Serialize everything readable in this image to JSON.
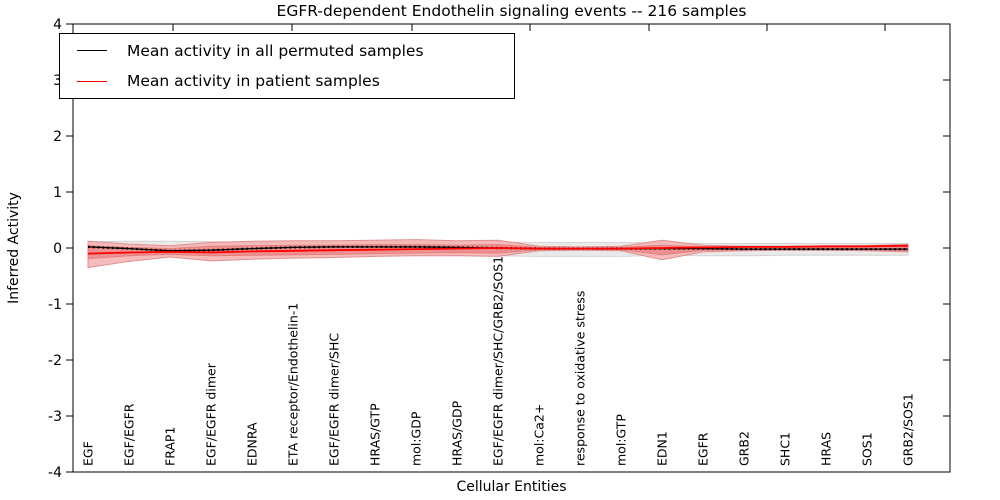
{
  "chart_data": {
    "type": "line",
    "title": "EGFR-dependent Endothelin signaling events -- 216 samples",
    "xlabel": "Cellular Entities",
    "ylabel": "Inferred Activity",
    "ylim": [
      -4,
      4
    ],
    "yticks": [
      4,
      3,
      2,
      1,
      0,
      -1,
      -2,
      -3,
      -4
    ],
    "grid": false,
    "legend_position": "upper-left",
    "categories": [
      "EGF",
      "EGF/EGFR",
      "FRAP1",
      "EGF/EGFR dimer",
      "EDNRA",
      "ETA receptor/Endothelin-1",
      "EGF/EGFR dimer/SHC",
      "HRAS/GTP",
      "mol:GDP",
      "HRAS/GDP",
      "EGF/EGFR dimer/SHC/GRB2/SOS1",
      "mol:Ca2+",
      "response to oxidative stress",
      "mol:GTP",
      "EDN1",
      "EGFR",
      "GRB2",
      "SHC1",
      "HRAS",
      "SOS1",
      "GRB2/SOS1"
    ],
    "series": [
      {
        "name": "Mean activity in all permuted samples",
        "color": "#000000",
        "style": "solid-with-dotted-overlay",
        "values": [
          0.02,
          -0.01,
          -0.05,
          -0.04,
          -0.01,
          0.01,
          0.02,
          0.02,
          0.02,
          0.01,
          0.0,
          -0.01,
          -0.01,
          -0.01,
          -0.01,
          -0.01,
          -0.02,
          -0.02,
          -0.02,
          -0.02,
          -0.02
        ]
      },
      {
        "name": "Mean activity in patient samples",
        "color": "#ff0000",
        "style": "solid",
        "values": [
          -0.1,
          -0.08,
          -0.07,
          -0.08,
          -0.06,
          -0.05,
          -0.04,
          -0.03,
          -0.02,
          -0.01,
          0.0,
          -0.01,
          -0.01,
          -0.01,
          0.0,
          0.01,
          0.02,
          0.02,
          0.03,
          0.03,
          0.04
        ]
      }
    ],
    "bands": [
      {
        "name": "permuted-samples-std-band",
        "fill": "#e8e8e8",
        "edge": "#d4d4d4",
        "upper": [
          0.11,
          0.12,
          0.12,
          0.11,
          0.1,
          0.1,
          0.1,
          0.1,
          0.1,
          0.1,
          0.1,
          0.1,
          0.1,
          0.1,
          0.09,
          0.08,
          0.08,
          0.08,
          0.08,
          0.08,
          0.08
        ],
        "lower": [
          -0.13,
          -0.13,
          -0.13,
          -0.13,
          -0.13,
          -0.13,
          -0.13,
          -0.13,
          -0.13,
          -0.13,
          -0.14,
          -0.15,
          -0.15,
          -0.15,
          -0.13,
          -0.14,
          -0.14,
          -0.13,
          -0.13,
          -0.13,
          -0.13
        ]
      },
      {
        "name": "patient-samples-std-band-outer",
        "fill": "#f5b4b4",
        "edge": "#e09090",
        "upper": [
          0.12,
          0.07,
          0.04,
          0.1,
          0.12,
          0.13,
          0.13,
          0.14,
          0.15,
          0.13,
          0.14,
          0.03,
          0.02,
          0.03,
          0.14,
          0.05,
          0.03,
          0.03,
          0.03,
          0.04,
          0.07
        ],
        "lower": [
          -0.35,
          -0.24,
          -0.16,
          -0.23,
          -0.2,
          -0.18,
          -0.17,
          -0.15,
          -0.14,
          -0.14,
          -0.15,
          -0.05,
          -0.04,
          -0.05,
          -0.21,
          -0.07,
          -0.05,
          -0.04,
          -0.04,
          -0.05,
          -0.07
        ]
      },
      {
        "name": "patient-samples-std-band-inner",
        "fill": "#ed8c8c",
        "edge": "#e47f7f",
        "upper": [
          0.04,
          0.01,
          -0.01,
          0.03,
          0.04,
          0.05,
          0.05,
          0.06,
          0.06,
          0.05,
          0.06,
          0.01,
          0.0,
          0.01,
          0.05,
          0.02,
          0.01,
          0.01,
          0.01,
          0.02,
          0.05
        ],
        "lower": [
          -0.19,
          -0.14,
          -0.11,
          -0.14,
          -0.13,
          -0.12,
          -0.11,
          -0.1,
          -0.09,
          -0.08,
          -0.09,
          -0.03,
          -0.02,
          -0.03,
          -0.12,
          -0.04,
          -0.03,
          -0.02,
          -0.02,
          -0.03,
          -0.05
        ]
      }
    ],
    "zero_reference_line": {
      "style": "dotted",
      "color": "#000000"
    }
  },
  "legend": {
    "entries": [
      {
        "label": "Mean activity in all permuted samples",
        "color": "#000000"
      },
      {
        "label": "Mean activity in patient samples",
        "color": "#ff0000"
      }
    ]
  }
}
